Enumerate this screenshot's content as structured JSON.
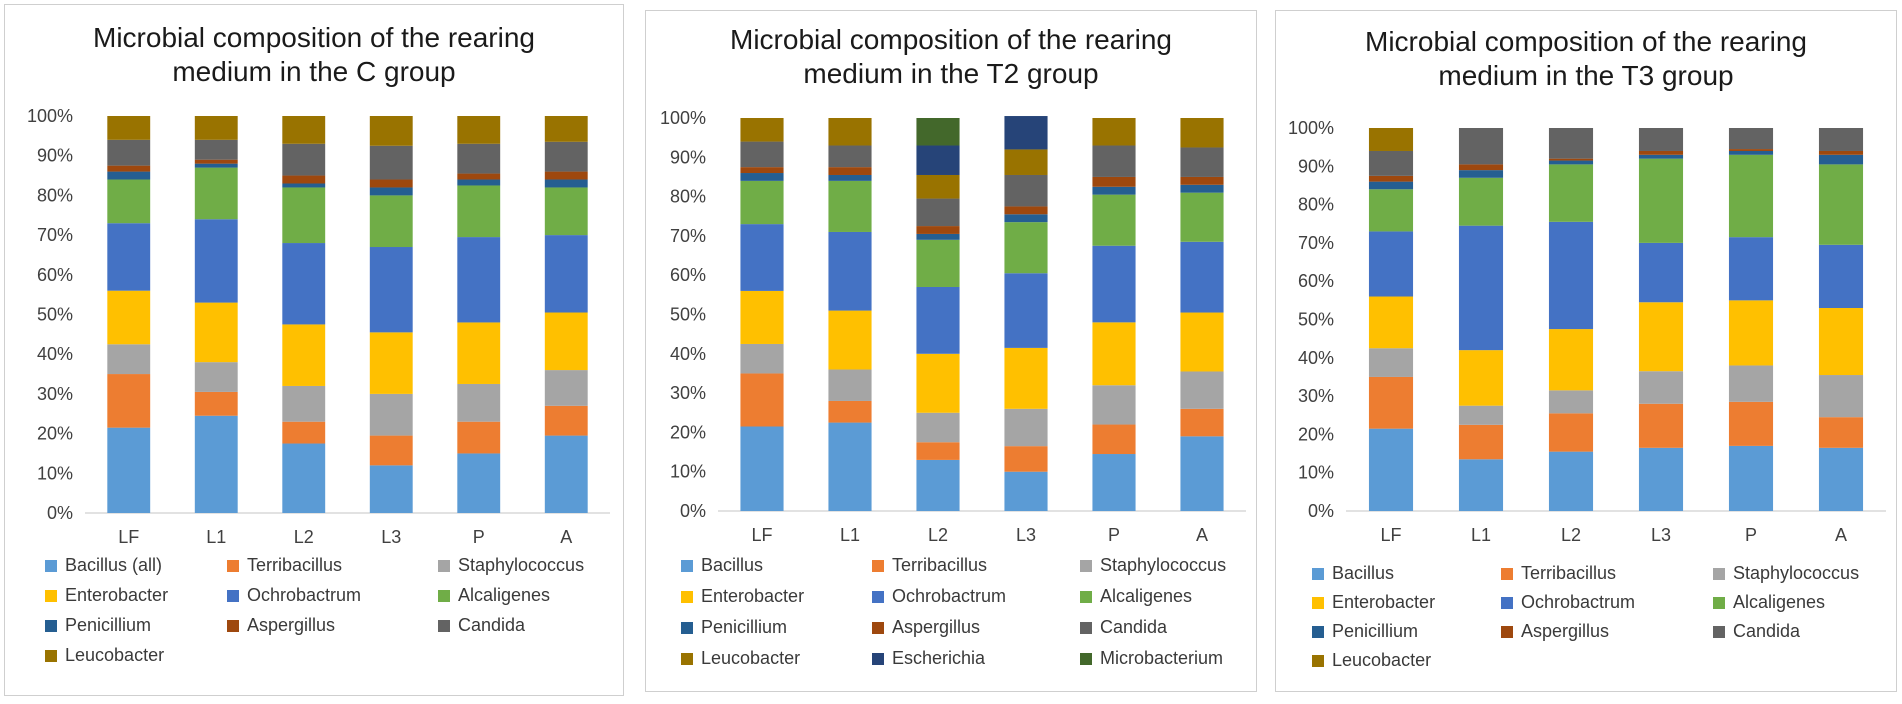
{
  "colors": {
    "Bacillus": "#5b9bd5",
    "Terribacillus": "#ed7d31",
    "Staphylococcus": "#a5a5a5",
    "Enterobacter": "#ffc000",
    "Ochrobactrum": "#4472c4",
    "Alcaligenes": "#70ad47",
    "Penicillium": "#255e91",
    "Aspergillus": "#9e480e",
    "Candida": "#636363",
    "Leucobacter": "#997300",
    "Escherichia": "#264478",
    "Microbacterium": "#43682b"
  },
  "chart_data": [
    {
      "type": "stacked-bar",
      "title_lines": [
        "Microbial composition of the rearing",
        "medium in the C group"
      ],
      "categories": [
        "LF",
        "L1",
        "L2",
        "L3",
        "P",
        "A"
      ],
      "yticks": [
        "0%",
        "10%",
        "20%",
        "30%",
        "40%",
        "50%",
        "60%",
        "70%",
        "80%",
        "90%",
        "100%"
      ],
      "ylim": [
        0,
        100
      ],
      "series": [
        {
          "name": "Bacillus (all)",
          "key": "Bacillus",
          "values": [
            21.5,
            24.5,
            17.5,
            12,
            15,
            19.5
          ]
        },
        {
          "name": "Terribacillus",
          "key": "Terribacillus",
          "values": [
            13.5,
            6,
            5.5,
            7.5,
            8,
            7.5
          ]
        },
        {
          "name": "Staphylococcus",
          "key": "Staphylococcus",
          "values": [
            7.5,
            7.5,
            9,
            10.5,
            9.5,
            9
          ]
        },
        {
          "name": "Enterobacter",
          "key": "Enterobacter",
          "values": [
            13.5,
            15,
            15.5,
            15.5,
            15.5,
            14.5
          ]
        },
        {
          "name": "Ochrobactrum",
          "key": "Ochrobactrum",
          "values": [
            17,
            21,
            20.5,
            21.5,
            21.5,
            19.5
          ]
        },
        {
          "name": "Alcaligenes",
          "key": "Alcaligenes",
          "values": [
            11,
            13,
            14,
            13,
            13,
            12
          ]
        },
        {
          "name": "Penicillium",
          "key": "Penicillium",
          "values": [
            2,
            1,
            1,
            2,
            1.5,
            2
          ]
        },
        {
          "name": "Aspergillus",
          "key": "Aspergillus",
          "values": [
            1.5,
            1,
            2,
            2,
            1.5,
            2
          ]
        },
        {
          "name": "Candida",
          "key": "Candida",
          "values": [
            6.5,
            5,
            8,
            8.5,
            7.5,
            7.5
          ]
        },
        {
          "name": "Leucobacter",
          "key": "Leucobacter",
          "values": [
            6,
            6,
            7,
            7.5,
            7,
            6.5
          ]
        }
      ]
    },
    {
      "type": "stacked-bar",
      "title_lines": [
        "Microbial composition of the rearing",
        "medium in the T2 group"
      ],
      "categories": [
        "LF",
        "L1",
        "L2",
        "L3",
        "P",
        "A"
      ],
      "yticks": [
        "0%",
        "10%",
        "20%",
        "30%",
        "40%",
        "50%",
        "60%",
        "70%",
        "80%",
        "90%",
        "100%"
      ],
      "ylim": [
        0,
        100
      ],
      "series": [
        {
          "name": "Bacillus",
          "key": "Bacillus",
          "values": [
            21.5,
            22.5,
            13,
            10,
            14.5,
            19
          ]
        },
        {
          "name": "Terribacillus",
          "key": "Terribacillus",
          "values": [
            13.5,
            5.5,
            4.5,
            6.5,
            7.5,
            7
          ]
        },
        {
          "name": "Staphylococcus",
          "key": "Staphylococcus",
          "values": [
            7.5,
            8,
            7.5,
            9.5,
            10,
            9.5
          ]
        },
        {
          "name": "Enterobacter",
          "key": "Enterobacter",
          "values": [
            13.5,
            15,
            15,
            15.5,
            16,
            15
          ]
        },
        {
          "name": "Ochrobactrum",
          "key": "Ochrobactrum",
          "values": [
            17,
            20,
            17,
            19,
            19.5,
            18
          ]
        },
        {
          "name": "Alcaligenes",
          "key": "Alcaligenes",
          "values": [
            11,
            13,
            12,
            13,
            13,
            12.5
          ]
        },
        {
          "name": "Penicillium",
          "key": "Penicillium",
          "values": [
            2,
            1.5,
            1.5,
            2,
            2,
            2
          ]
        },
        {
          "name": "Aspergillus",
          "key": "Aspergillus",
          "values": [
            1.5,
            2,
            2,
            2,
            2.5,
            2
          ]
        },
        {
          "name": "Candida",
          "key": "Candida",
          "values": [
            6.5,
            5.5,
            7,
            8,
            8,
            7.5
          ]
        },
        {
          "name": "Leucobacter",
          "key": "Leucobacter",
          "values": [
            6,
            7,
            6,
            6.5,
            7,
            7.5
          ]
        },
        {
          "name": "Escherichia",
          "key": "Escherichia",
          "values": [
            0,
            0,
            7.5,
            8.5,
            0,
            0
          ]
        },
        {
          "name": "Microbacterium",
          "key": "Microbacterium",
          "values": [
            0,
            0,
            7,
            0,
            0,
            0
          ]
        }
      ]
    },
    {
      "type": "stacked-bar",
      "title_lines": [
        "Microbial composition of the rearing",
        "medium in the T3 group"
      ],
      "categories": [
        "LF",
        "L1",
        "L2",
        "L3",
        "P",
        "A"
      ],
      "yticks": [
        "0%",
        "10%",
        "20%",
        "30%",
        "40%",
        "50%",
        "60%",
        "70%",
        "80%",
        "90%",
        "100%"
      ],
      "ylim": [
        0,
        100
      ],
      "series": [
        {
          "name": "Bacillus",
          "key": "Bacillus",
          "values": [
            21.5,
            13.5,
            15.5,
            16.5,
            17,
            16.5
          ]
        },
        {
          "name": "Terribacillus",
          "key": "Terribacillus",
          "values": [
            13.5,
            9,
            10,
            11.5,
            11.5,
            8
          ]
        },
        {
          "name": "Staphylococcus",
          "key": "Staphylococcus",
          "values": [
            7.5,
            5,
            6,
            8.5,
            9.5,
            11
          ]
        },
        {
          "name": "Enterobacter",
          "key": "Enterobacter",
          "values": [
            13.5,
            14.5,
            16,
            18,
            17,
            17.5
          ]
        },
        {
          "name": "Ochrobactrum",
          "key": "Ochrobactrum",
          "values": [
            17,
            32.5,
            28,
            15.5,
            16.5,
            16.5
          ]
        },
        {
          "name": "Alcaligenes",
          "key": "Alcaligenes",
          "values": [
            11,
            12.5,
            15,
            22,
            21.5,
            21
          ]
        },
        {
          "name": "Penicillium",
          "key": "Penicillium",
          "values": [
            2,
            2,
            1,
            1,
            1,
            2.5
          ]
        },
        {
          "name": "Aspergillus",
          "key": "Aspergillus",
          "values": [
            1.5,
            1.5,
            0.5,
            1,
            0.5,
            1
          ]
        },
        {
          "name": "Candida",
          "key": "Candida",
          "values": [
            6.5,
            9.5,
            8,
            6,
            5.5,
            6
          ]
        },
        {
          "name": "Leucobacter",
          "key": "Leucobacter",
          "values": [
            6,
            0,
            0,
            0,
            0,
            0
          ]
        }
      ]
    }
  ]
}
